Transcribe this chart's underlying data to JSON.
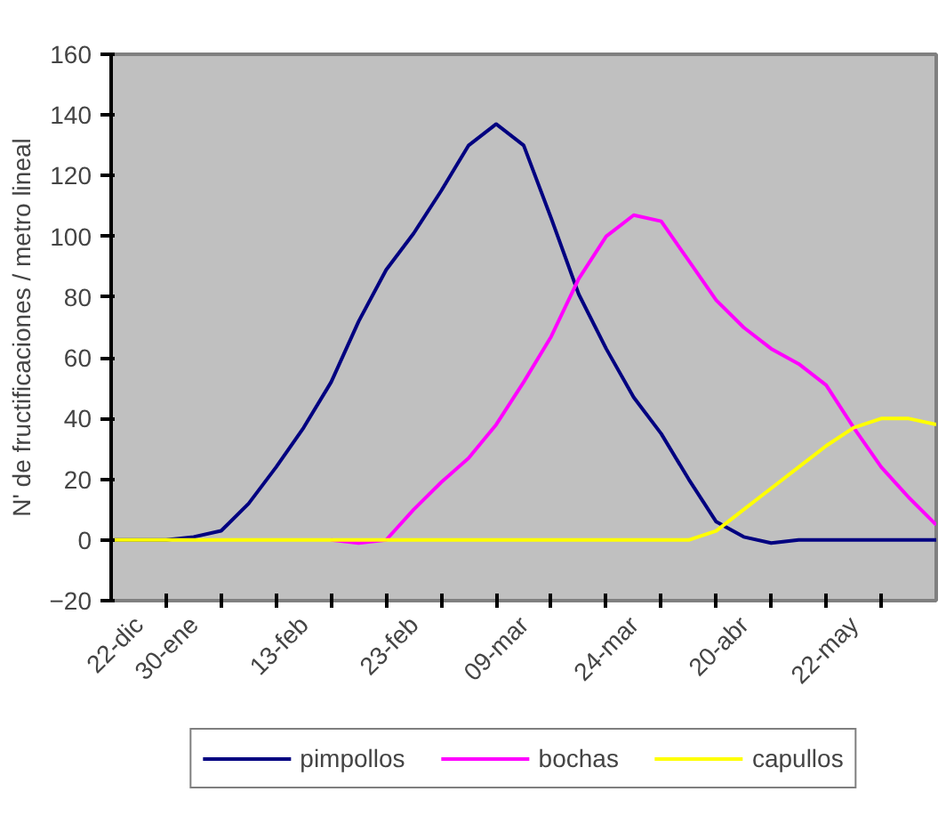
{
  "chart_data": {
    "type": "line",
    "ylabel": "N' de fructificaciones / metro lineal",
    "categories": [
      null,
      "22-dic",
      null,
      "30-ene",
      null,
      null,
      null,
      "13-feb",
      null,
      null,
      null,
      "23-feb",
      null,
      null,
      null,
      "09-mar",
      null,
      null,
      null,
      "24-mar",
      null,
      null,
      null,
      "20-abr",
      null,
      null,
      null,
      "22-may",
      null,
      null,
      null
    ],
    "series": [
      {
        "name": "pimpollos",
        "color": "#000080",
        "values": [
          0,
          0,
          0,
          1,
          3,
          12,
          24,
          37,
          52,
          72,
          89,
          101,
          115,
          130,
          137,
          130,
          106,
          81,
          63,
          47,
          35,
          20,
          6,
          1,
          -1,
          0,
          0,
          0,
          0,
          0,
          0
        ]
      },
      {
        "name": "bochas",
        "color": "#ff00ff",
        "values": [
          null,
          null,
          null,
          null,
          null,
          null,
          null,
          null,
          0,
          -1,
          0,
          10,
          19,
          27,
          38,
          52,
          67,
          86,
          100,
          107,
          105,
          92,
          79,
          70,
          63,
          58,
          51,
          37,
          24,
          14,
          5
        ]
      },
      {
        "name": "capullos",
        "color": "#ffff00",
        "values": [
          0,
          0,
          0,
          0,
          0,
          0,
          0,
          0,
          0,
          0,
          0,
          0,
          0,
          0,
          0,
          0,
          0,
          0,
          0,
          0,
          0,
          0,
          3,
          10,
          17,
          24,
          31,
          37,
          40,
          40,
          38
        ]
      }
    ],
    "ylim": [
      -20,
      160
    ],
    "yticks": [
      -20,
      0,
      20,
      40,
      60,
      80,
      100,
      120,
      140,
      160
    ],
    "grid": false,
    "legend": "bottom",
    "marker": "none",
    "line_style": "solid"
  }
}
